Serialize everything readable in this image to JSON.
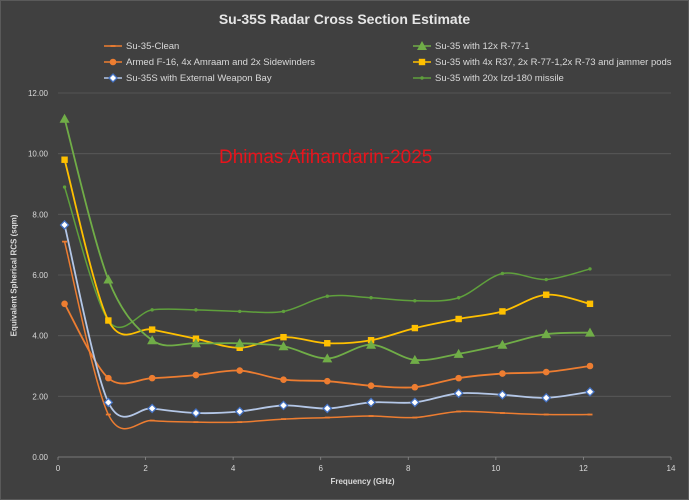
{
  "chart_data": {
    "type": "scatter",
    "title": "Su-35S Radar Cross Section Estimate",
    "xlabel": "Frequency (GHz)",
    "ylabel": "Equivalent Spherical RCS (sqm)",
    "xlim": [
      0,
      14
    ],
    "ylim": [
      0,
      12
    ],
    "x_ticks": [
      "0",
      "2",
      "4",
      "6",
      "8",
      "10",
      "12",
      "14"
    ],
    "y_ticks": [
      "0.00",
      "2.00",
      "4.00",
      "6.00",
      "8.00",
      "10.00",
      "12.00"
    ],
    "grid": true,
    "legend_position": "top",
    "series": [
      {
        "name": "Su-35-Clean",
        "color": "#ed7d31",
        "marker": "dash",
        "x": [
          0.15,
          1.15,
          2.15,
          3.15,
          4.15,
          5.15,
          6.15,
          7.15,
          8.15,
          9.15,
          10.15,
          11.15,
          12.15
        ],
        "values": [
          7.1,
          1.4,
          1.2,
          1.15,
          1.15,
          1.25,
          1.3,
          1.35,
          1.3,
          1.5,
          1.45,
          1.4,
          1.4
        ]
      },
      {
        "name": "Su-35 with 12x R-77-1",
        "color": "#70ad47",
        "marker": "triangle",
        "x": [
          0.15,
          1.15,
          2.15,
          3.15,
          4.15,
          5.15,
          6.15,
          7.15,
          8.15,
          9.15,
          10.15,
          11.15,
          12.15
        ],
        "values": [
          11.15,
          5.85,
          3.85,
          3.75,
          3.75,
          3.65,
          3.25,
          3.7,
          3.2,
          3.4,
          3.7,
          4.05,
          4.1
        ]
      },
      {
        "name": "Armed F-16, 4x Amraam and 2x Sidewinders",
        "color": "#ed7d31",
        "marker": "circle",
        "x": [
          0.15,
          1.15,
          2.15,
          3.15,
          4.15,
          5.15,
          6.15,
          7.15,
          8.15,
          9.15,
          10.15,
          11.15,
          12.15
        ],
        "values": [
          5.05,
          2.6,
          2.6,
          2.7,
          2.85,
          2.55,
          2.5,
          2.35,
          2.3,
          2.6,
          2.75,
          2.8,
          3.0
        ]
      },
      {
        "name": "Su-35 with 4x R37, 2x R-77-1,2x R-73 and jammer pods",
        "color": "#ffc000",
        "marker": "square",
        "x": [
          0.15,
          1.15,
          2.15,
          3.15,
          4.15,
          5.15,
          6.15,
          7.15,
          8.15,
          9.15,
          10.15,
          11.15,
          12.15
        ],
        "values": [
          9.8,
          4.5,
          4.2,
          3.9,
          3.6,
          3.95,
          3.75,
          3.85,
          4.25,
          4.55,
          4.8,
          5.35,
          5.05
        ]
      },
      {
        "name": "Su-35S with External Weapon Bay",
        "color": "#b4c7e7",
        "marker": "diamond",
        "x": [
          0.15,
          1.15,
          2.15,
          3.15,
          4.15,
          5.15,
          6.15,
          7.15,
          8.15,
          9.15,
          10.15,
          11.15,
          12.15
        ],
        "values": [
          7.65,
          1.8,
          1.6,
          1.45,
          1.5,
          1.7,
          1.6,
          1.8,
          1.8,
          2.1,
          2.05,
          1.95,
          2.15
        ]
      },
      {
        "name": "Su-35 with 20x Izd-180 missile",
        "color": "#5fa03c",
        "marker": "dot",
        "x": [
          0.15,
          1.15,
          2.15,
          3.15,
          4.15,
          5.15,
          6.15,
          7.15,
          8.15,
          9.15,
          10.15,
          11.15,
          12.15
        ],
        "values": [
          8.9,
          4.5,
          4.85,
          4.85,
          4.8,
          4.8,
          5.3,
          5.25,
          5.15,
          5.25,
          6.05,
          5.85,
          6.2
        ]
      }
    ],
    "annotation": "Dhimas Afihandarin-2025"
  }
}
